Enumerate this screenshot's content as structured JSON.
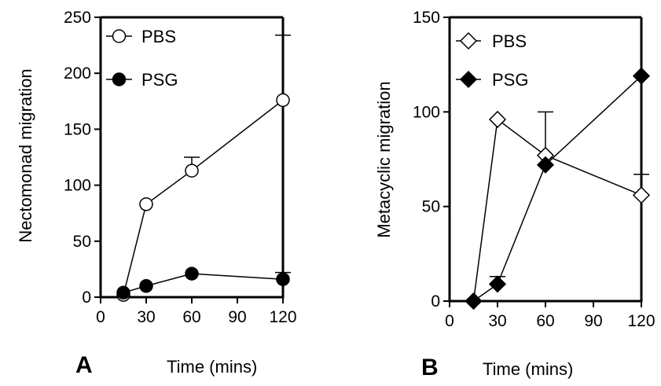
{
  "chart_data": [
    {
      "panel_label": "A",
      "type": "line",
      "xlabel": "Time (mins)",
      "ylabel": "Nectomonad migration",
      "xlim": [
        0,
        120
      ],
      "ylim": [
        0,
        250
      ],
      "xticks": [
        0,
        30,
        60,
        90,
        120
      ],
      "yticks": [
        0,
        50,
        100,
        150,
        200,
        250
      ],
      "legend_position": "top-left",
      "grid": false,
      "series": [
        {
          "name": "PBS",
          "marker": "circle",
          "filled": false,
          "x": [
            15,
            30,
            60,
            120
          ],
          "y": [
            2,
            83,
            113,
            176
          ],
          "error_upper": [
            0,
            0,
            12,
            58
          ]
        },
        {
          "name": "PSG",
          "marker": "circle",
          "filled": true,
          "x": [
            15,
            30,
            60,
            120
          ],
          "y": [
            4,
            10,
            21,
            16
          ],
          "error_upper": [
            0,
            0,
            0,
            6
          ]
        }
      ]
    },
    {
      "panel_label": "B",
      "type": "line",
      "xlabel": "Time (mins)",
      "ylabel": "Metacyclic migration",
      "xlim": [
        0,
        120
      ],
      "ylim": [
        0,
        150
      ],
      "xticks": [
        0,
        30,
        60,
        90,
        120
      ],
      "yticks": [
        0,
        50,
        100,
        150
      ],
      "legend_position": "top-left",
      "grid": false,
      "series": [
        {
          "name": "PBS",
          "marker": "diamond",
          "filled": false,
          "x": [
            15,
            30,
            60,
            120
          ],
          "y": [
            0,
            96,
            77,
            56
          ],
          "error_upper": [
            0,
            0,
            23,
            11
          ]
        },
        {
          "name": "PSG",
          "marker": "diamond",
          "filled": true,
          "x": [
            15,
            30,
            60,
            120
          ],
          "y": [
            0,
            9,
            72,
            119
          ],
          "error_upper": [
            0,
            4,
            0,
            0
          ]
        }
      ]
    }
  ]
}
